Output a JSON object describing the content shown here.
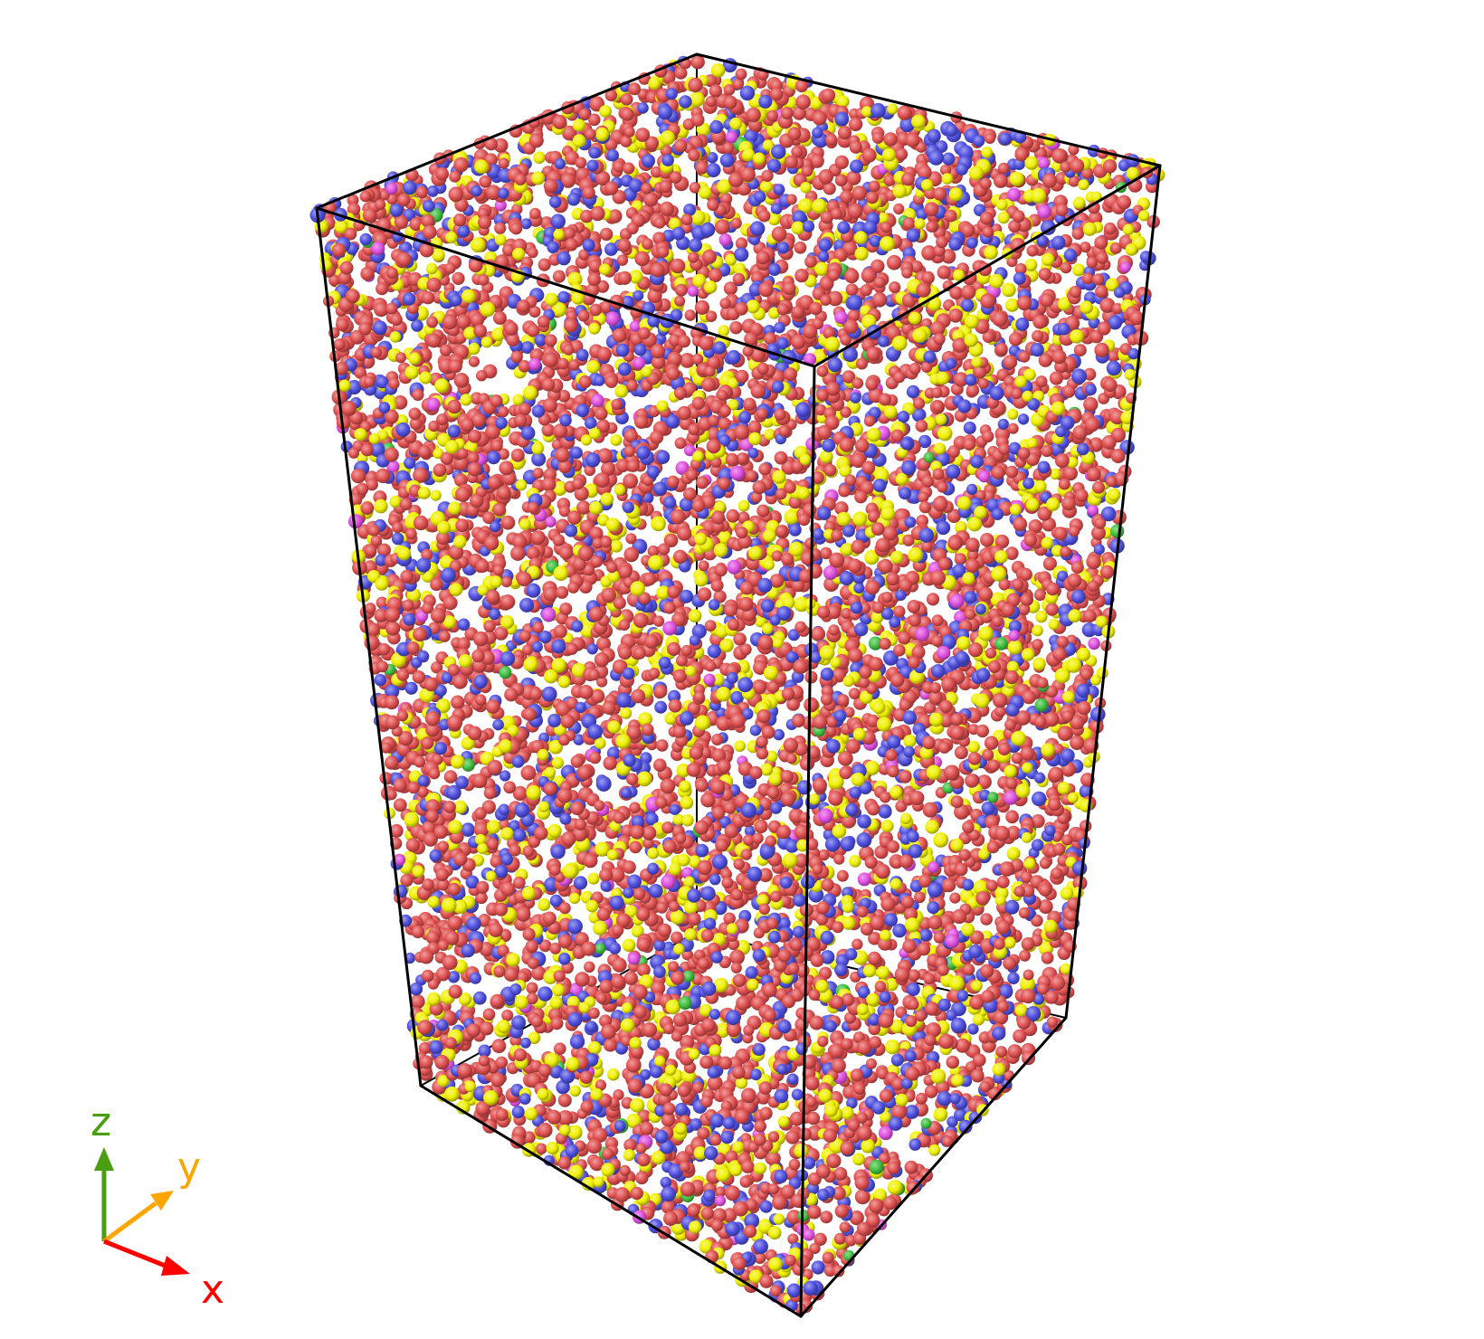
{
  "colors": {
    "background": "#ffffff",
    "box_edge": "#000000",
    "atom_types": {
      "red": "#e05050",
      "yellow": "#f0f000",
      "blue": "#5050e0",
      "magenta": "#e050e0",
      "green": "#40c040"
    }
  },
  "atom_mix": {
    "red": 0.58,
    "yellow": 0.2,
    "blue": 0.195,
    "magenta": 0.02,
    "green": 0.005
  },
  "triad": {
    "x": {
      "label": "x",
      "color": "#ff0000"
    },
    "y": {
      "label": "y",
      "color": "#ffa500"
    },
    "z": {
      "label": "z",
      "color": "#4a9f10"
    }
  }
}
